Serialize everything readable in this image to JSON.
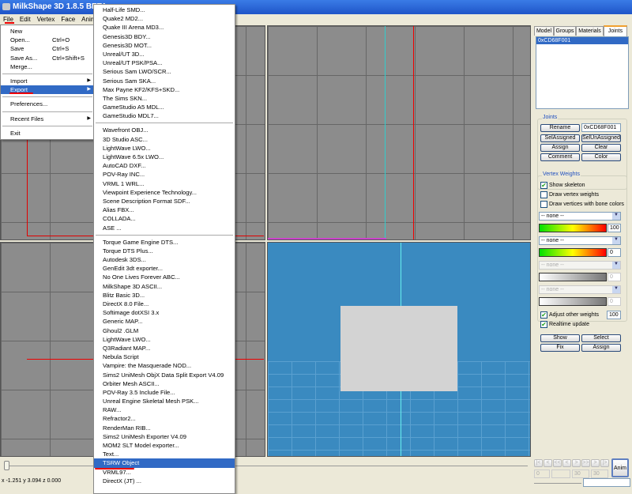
{
  "window": {
    "title": "MilkShape 3D 1.8.5 BETA"
  },
  "menubar": [
    "File",
    "Edit",
    "Vertex",
    "Face",
    "Anim"
  ],
  "file_menu": [
    {
      "label": "New"
    },
    {
      "label": "Open...",
      "shortcut": "Ctrl+O"
    },
    {
      "label": "Save",
      "shortcut": "Ctrl+S"
    },
    {
      "label": "Save As...",
      "shortcut": "Ctrl+Shift+S"
    },
    {
      "label": "Merge..."
    },
    {
      "sep": true
    },
    {
      "label": "Import",
      "submenu": true
    },
    {
      "label": "Export",
      "submenu": true,
      "selected": true
    },
    {
      "sep": true
    },
    {
      "label": "Preferences..."
    },
    {
      "sep": true
    },
    {
      "label": "Recent Files",
      "submenu": true
    },
    {
      "sep": true
    },
    {
      "label": "Exit"
    }
  ],
  "export_menu": [
    [
      "Half-Life SMD...",
      "Quake2 MD2...",
      "Quake III Arena MD3...",
      "Genesis3D BDY...",
      "Genesis3D MOT...",
      "Unreal/UT 3D...",
      "Unreal/UT PSK/PSA...",
      "Serious Sam LWO/SCR...",
      "Serious Sam SKA...",
      "Max Payne KF2/KFS+SKD...",
      "The Sims SKN...",
      "GameStudio A5 MDL...",
      "GameStudio MDL7..."
    ],
    [
      "Wavefront OBJ...",
      "3D Studio ASC...",
      "LightWave LWO...",
      "LightWave 6.5x LWO...",
      "AutoCAD DXF...",
      "POV-Ray INC...",
      "VRML 1 WRL...",
      "Viewpoint Experience Technology...",
      "Scene Description Format SDF...",
      "Alias FBX...",
      "COLLADA...",
      "ASE ..."
    ],
    [
      "Torque Game Engine DTS...",
      "Torque DTS Plus...",
      "Autodesk 3DS...",
      "GenEdit 3dt exporter...",
      "No One Lives Forever ABC...",
      "MilkShape 3D ASCII...",
      "Blitz Basic 3D...",
      "DirectX 8.0 File...",
      "Softimage dotXSI 3.x",
      "Generic MAP...",
      "Ghoul2 .GLM",
      "LightWave LWO...",
      "Q3Radiant MAP...",
      "Nebula Script",
      "Vampire: the Masquerade NOD...",
      "Sims2 UniMesh ObjX Data Split Export V4.09",
      "Orbiter Mesh ASCII...",
      "POV-Ray 3.5 Include File...",
      "Unreal Engine Skeletal Mesh PSK...",
      "RAW...",
      "Refractor2...",
      "RenderMan RIB...",
      "Sims2 UniMesh Exporter V4.09",
      "MOM2 SLT Model exporter...",
      "Text...",
      "TSRW Object",
      "VRML97...",
      "DirectX (JT) ..."
    ]
  ],
  "export_selected": "TSRW Object",
  "panel": {
    "tabs": [
      "Model",
      "Groups",
      "Materials",
      "Joints"
    ],
    "active_tab": "Joints",
    "joint_list": [
      "0xCD68F001"
    ],
    "joints_group": "Joints",
    "rename": "Rename",
    "joint_name": "0xCD68F001",
    "sel_assigned": "SelAssigned",
    "sel_unassigned": "SelUnAssigned",
    "assign": "Assign",
    "clear": "Clear",
    "comment": "Comment",
    "color": "Color",
    "vw_group": "Vertex Weights",
    "show_skeleton": "Show skeleton",
    "draw_vertex_weights": "Draw vertex weights",
    "draw_bone_colors": "Draw vertices with bone colors",
    "combos": [
      {
        "value": "-- none --",
        "weight": "100"
      },
      {
        "value": "-- none --",
        "weight": "0"
      },
      {
        "value": "-- none --",
        "weight": "0"
      },
      {
        "value": "-- none --",
        "weight": "0"
      }
    ],
    "adjust_other": "Adjust other weights",
    "adjust_value": "100",
    "realtime": "Realtime update",
    "show": "Show",
    "select": "Select",
    "fix": "Fix",
    "assign2": "Assign"
  },
  "anim": {
    "frame": "0",
    "start": "30",
    "end": "30",
    "anim_button": "Anim",
    "controls": [
      "|<",
      "<",
      "<<",
      "<",
      ">",
      ">>",
      ">",
      "|>"
    ]
  },
  "status": {
    "coords": "x -1.251 y 3.094 z 0.000"
  },
  "colors": {
    "highlight": "#316ac5",
    "viewport_3d": "#3a8ac0",
    "viewport_2d": "#8c8c8c",
    "annotation": "#e00000"
  }
}
